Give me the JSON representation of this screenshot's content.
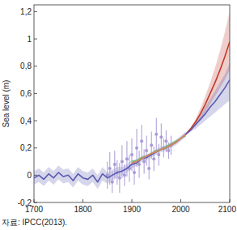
{
  "chart_data": {
    "type": "line",
    "ylabel": "Sea level (m)",
    "source": "자료: IPCC(2013).",
    "xlim": [
      1700,
      2100
    ],
    "xticks": [
      1700,
      1800,
      1900,
      2000,
      2100
    ],
    "ylim": [
      -0.2,
      1.25
    ],
    "yticks": [
      {
        "value": -0.2,
        "label": "-0,2"
      },
      0,
      {
        "value": 0.2,
        "label": "0,2"
      },
      {
        "value": 0.4,
        "label": "0,4"
      },
      {
        "value": 0.6,
        "label": "0,6"
      },
      {
        "value": 0.8,
        "label": "0,8"
      },
      1,
      {
        "value": 1.2,
        "label": "1,2"
      }
    ],
    "grid": false,
    "series": [
      {
        "type": "line",
        "color": "#5a5ab0",
        "x": [
          1700,
          1710,
          1720,
          1730,
          1740,
          1750,
          1760,
          1770,
          1780,
          1790,
          1800,
          1810,
          1820,
          1830,
          1840,
          1850,
          1860,
          1870,
          1880,
          1890,
          1900,
          1910,
          1920,
          1930,
          1940,
          1950,
          1960,
          1970,
          1980,
          1990,
          2000,
          2010
        ],
        "values": [
          -0.02,
          0.0,
          -0.03,
          0.01,
          -0.02,
          0.02,
          -0.01,
          0.0,
          -0.04,
          0.01,
          -0.02,
          -0.03,
          0.0,
          -0.05,
          0.01,
          -0.02,
          0.0,
          0.02,
          0.03,
          0.05,
          0.08,
          0.09,
          0.12,
          0.13,
          0.15,
          0.17,
          0.19,
          0.2,
          0.22,
          0.24,
          0.27,
          0.3
        ],
        "lower": [
          -0.07,
          -0.05,
          -0.08,
          -0.04,
          -0.07,
          -0.03,
          -0.06,
          -0.05,
          -0.09,
          -0.04,
          -0.07,
          -0.08,
          -0.05,
          -0.1,
          -0.04,
          -0.06,
          -0.04,
          -0.02,
          0.0,
          0.02,
          0.05,
          0.07,
          0.1,
          0.11,
          0.13,
          0.15,
          0.17,
          0.18,
          0.2,
          0.22,
          0.25,
          0.28
        ],
        "upper": [
          0.03,
          0.05,
          0.02,
          0.06,
          0.03,
          0.07,
          0.04,
          0.05,
          0.01,
          0.06,
          0.03,
          0.02,
          0.05,
          0.0,
          0.06,
          0.02,
          0.04,
          0.06,
          0.06,
          0.08,
          0.11,
          0.11,
          0.14,
          0.15,
          0.17,
          0.19,
          0.21,
          0.22,
          0.24,
          0.26,
          0.29,
          0.32
        ]
      },
      {
        "type": "scatter",
        "color": "#a89ad6",
        "marker": "circle",
        "x": [
          1850,
          1855,
          1860,
          1865,
          1870,
          1875,
          1880,
          1885,
          1890,
          1895,
          1900,
          1905,
          1910,
          1915,
          1920,
          1925,
          1930,
          1935,
          1940,
          1945,
          1950,
          1955,
          1960,
          1965,
          1970,
          1975,
          1980
        ],
        "values": [
          0.0,
          0.05,
          -0.05,
          0.08,
          0.02,
          -0.02,
          0.1,
          0.0,
          0.12,
          0.05,
          0.15,
          0.02,
          0.2,
          0.08,
          0.25,
          0.1,
          0.18,
          0.05,
          0.22,
          0.12,
          0.3,
          0.15,
          0.28,
          0.2,
          0.25,
          0.18,
          0.22
        ],
        "errors": [
          0.1,
          0.12,
          0.08,
          0.1,
          0.09,
          0.11,
          0.12,
          0.08,
          0.13,
          0.1,
          0.12,
          0.09,
          0.14,
          0.1,
          0.12,
          0.09,
          0.11,
          0.08,
          0.1,
          0.09,
          0.12,
          0.08,
          0.1,
          0.07,
          0.08,
          0.06,
          0.07
        ]
      },
      {
        "type": "line",
        "color": "#78b878",
        "x": [
          1900,
          1910,
          1920,
          1930,
          1940,
          1950,
          1960,
          1970,
          1980,
          1990,
          2000,
          2010
        ],
        "values": [
          0.1,
          0.11,
          0.13,
          0.14,
          0.16,
          0.18,
          0.19,
          0.21,
          0.23,
          0.25,
          0.27,
          0.29
        ]
      },
      {
        "type": "line",
        "color": "#d9825b",
        "x": [
          1900,
          1910,
          1920,
          1930,
          1940,
          1950,
          1960,
          1970,
          1980,
          1990,
          2000,
          2010
        ],
        "values": [
          0.09,
          0.1,
          0.12,
          0.14,
          0.16,
          0.17,
          0.19,
          0.2,
          0.22,
          0.24,
          0.27,
          0.3
        ]
      },
      {
        "type": "line",
        "color": "#c0392b",
        "x": [
          2010,
          2020,
          2030,
          2040,
          2050,
          2060,
          2070,
          2080,
          2090,
          2100
        ],
        "values": [
          0.3,
          0.34,
          0.39,
          0.45,
          0.52,
          0.6,
          0.68,
          0.77,
          0.87,
          0.98
        ],
        "lower": [
          0.3,
          0.33,
          0.36,
          0.41,
          0.46,
          0.52,
          0.58,
          0.64,
          0.7,
          0.77
        ],
        "upper": [
          0.3,
          0.35,
          0.41,
          0.49,
          0.58,
          0.68,
          0.79,
          0.91,
          1.05,
          1.2
        ]
      },
      {
        "type": "line",
        "color": "#5a5ab0",
        "x": [
          2010,
          2020,
          2030,
          2040,
          2050,
          2060,
          2070,
          2080,
          2090,
          2100
        ],
        "values": [
          0.3,
          0.33,
          0.37,
          0.41,
          0.45,
          0.5,
          0.54,
          0.59,
          0.64,
          0.7
        ],
        "lower": [
          0.3,
          0.32,
          0.34,
          0.37,
          0.4,
          0.43,
          0.46,
          0.49,
          0.52,
          0.55
        ],
        "upper": [
          0.3,
          0.34,
          0.39,
          0.44,
          0.5,
          0.56,
          0.62,
          0.68,
          0.74,
          0.82
        ]
      }
    ]
  }
}
